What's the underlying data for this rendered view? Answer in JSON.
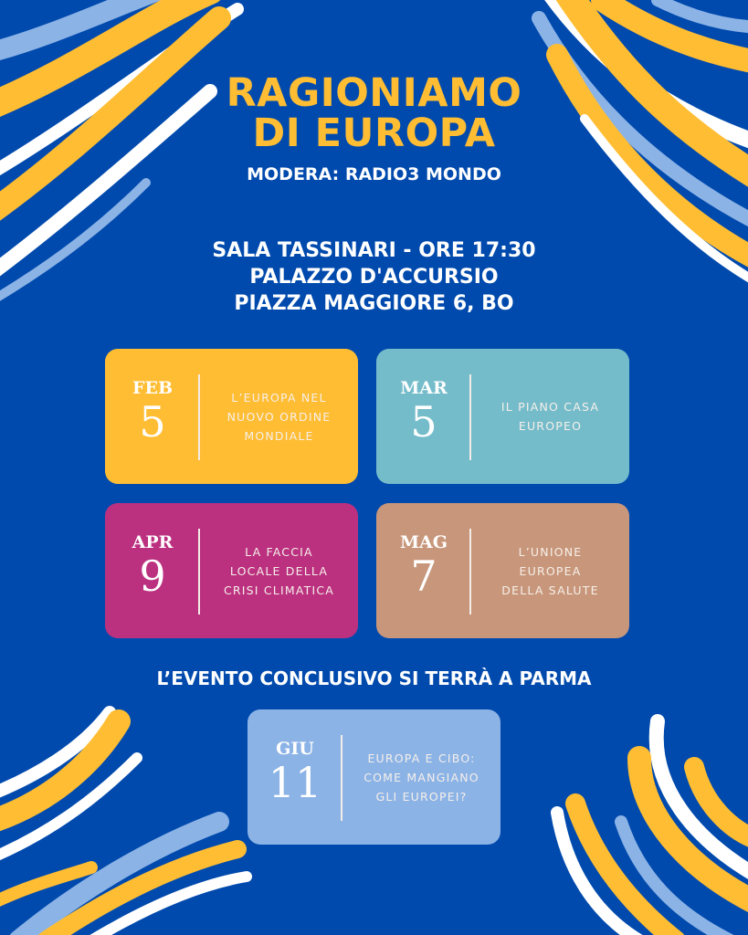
{
  "title": {
    "line1": "RAGIONIAMO",
    "line2": "DI EUROPA"
  },
  "moderator": "MODERA: RADIO3 MONDO",
  "venue": {
    "line1": "SALA TASSINARI - ORE 17:30",
    "line2": "PALAZZO D'ACCURSIO",
    "line3": "PIAZZA MAGGIORE 6, BO"
  },
  "events": [
    {
      "month": "FEB",
      "day": "5",
      "topic": "L’EUROPA NEL\nNUOVO ORDINE\nMONDIALE",
      "color": "#ffbd33"
    },
    {
      "month": "MAR",
      "day": "5",
      "topic": "IL PIANO CASA\nEUROPEO",
      "color": "#75bccb"
    },
    {
      "month": "APR",
      "day": "9",
      "topic": "LA FACCIA\nLOCALE DELLA\nCRISI CLIMATICA",
      "color": "#bb3180"
    },
    {
      "month": "MAG",
      "day": "7",
      "topic": "L’UNIONE\nEUROPEA\nDELLA SALUTE",
      "color": "#c8977b"
    }
  ],
  "final_heading": "L’EVENTO CONCLUSIVO SI TERRÀ A PARMA",
  "final_event": {
    "month": "GIU",
    "day": "11",
    "topic": "EUROPA E CIBO:\nCOME MANGIANO\nGLI EUROPEI?",
    "color": "#8bb3e6"
  },
  "colors": {
    "background": "#004aad",
    "accent": "#ffbd33",
    "stroke_light_blue": "#8bb3e6",
    "stroke_white": "#ffffff"
  }
}
